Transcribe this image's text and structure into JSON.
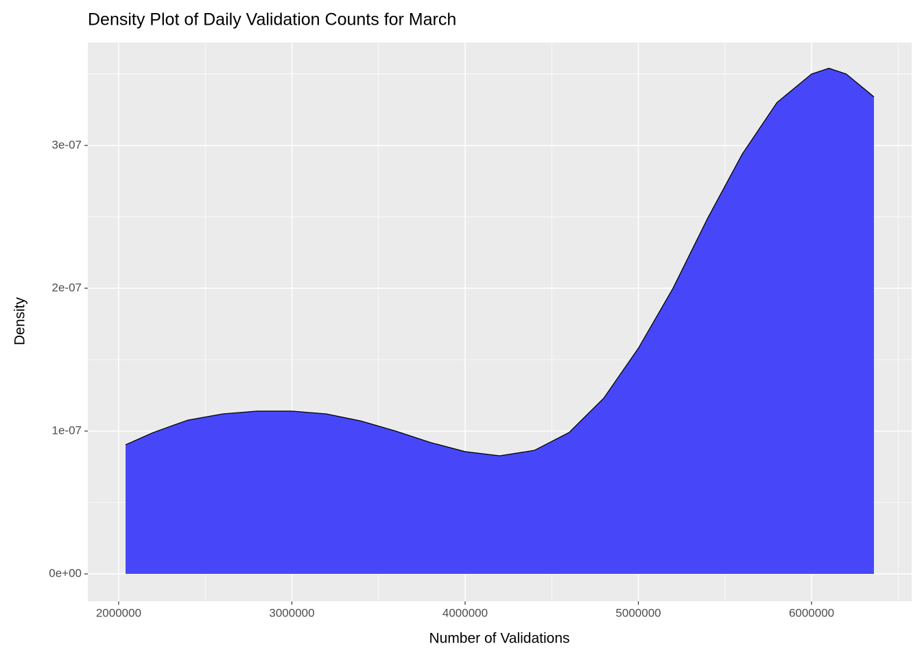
{
  "chart_data": {
    "type": "density",
    "title": "Density Plot of Daily Validation Counts for March",
    "x_label": "Number of Validations",
    "y_label": "Density",
    "x": [
      2040000,
      2200000,
      2400000,
      2600000,
      2800000,
      3000000,
      3200000,
      3400000,
      3600000,
      3800000,
      4000000,
      4200000,
      4400000,
      4600000,
      4800000,
      5000000,
      5200000,
      5400000,
      5600000,
      5800000,
      6000000,
      6100000,
      6200000,
      6360000
    ],
    "values": [
      9.04e-08,
      9.9e-08,
      1.077e-07,
      1.12e-07,
      1.14e-07,
      1.14e-07,
      1.12e-07,
      1.07e-07,
      1e-07,
      9.2e-08,
      8.56e-08,
      8.27e-08,
      8.65e-08,
      9.9e-08,
      1.23e-07,
      1.58e-07,
      2e-07,
      2.49e-07,
      2.94e-07,
      3.3e-07,
      3.5e-07,
      3.54e-07,
      3.5e-07,
      3.34e-07
    ],
    "color": "#4747f9",
    "outline_color": "#000000",
    "xlim": [
      1822000,
      6578000
    ],
    "ylim": [
      -1.92e-08,
      3.72e-07
    ],
    "xticks": [
      2000000,
      3000000,
      4000000,
      5000000,
      6000000
    ],
    "yticks": [
      {
        "value": 0,
        "label": "0e+00"
      },
      {
        "value": 1e-07,
        "label": "1e-07"
      },
      {
        "value": 2e-07,
        "label": "2e-07"
      },
      {
        "value": 3e-07,
        "label": "3e-07"
      }
    ],
    "grid": true
  }
}
